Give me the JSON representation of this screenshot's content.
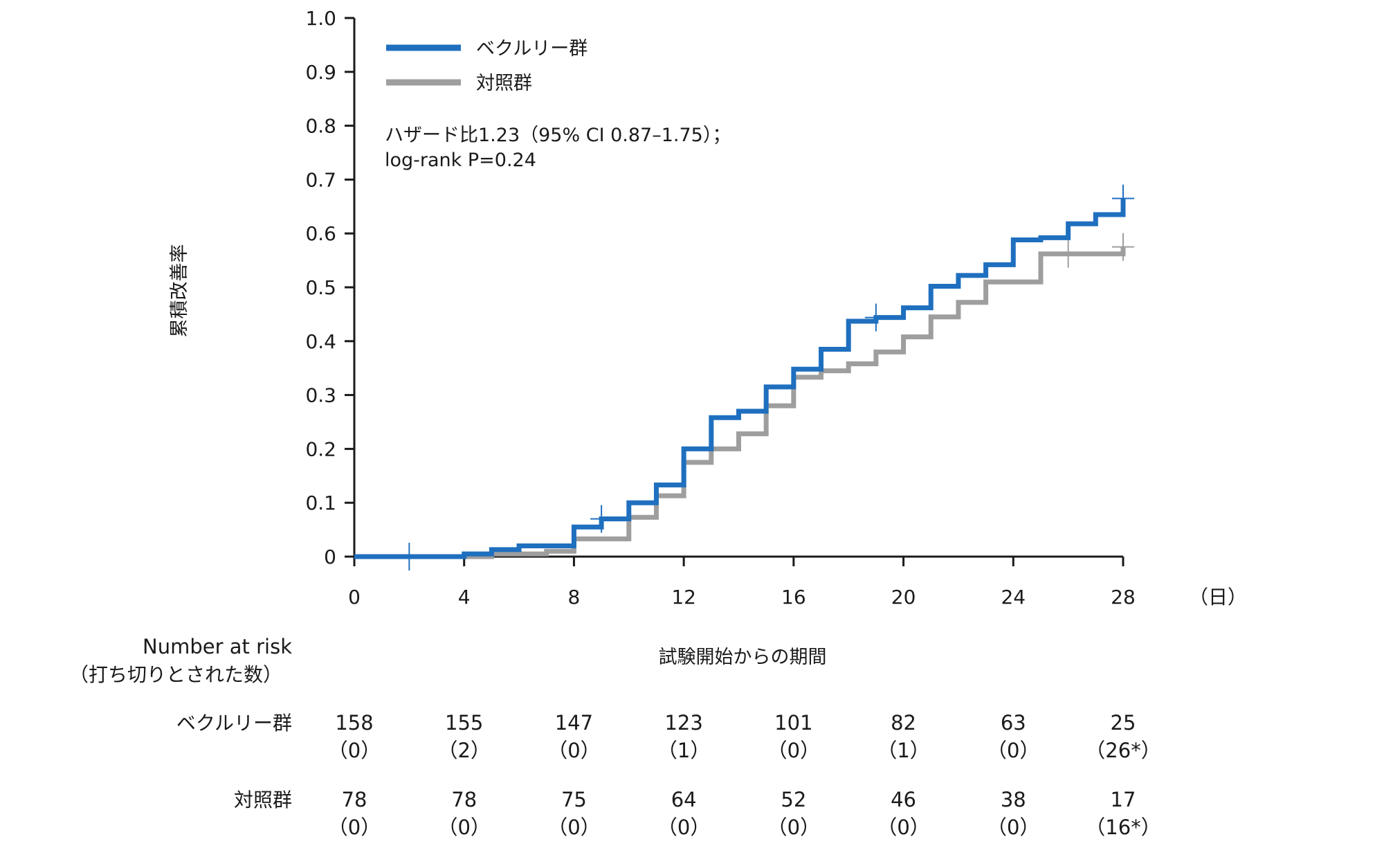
{
  "chart_data": {
    "type": "line",
    "step": true,
    "xlabel": "試験開始からの期間",
    "x_unit": "（日）",
    "ylabel": "累積改善率",
    "xlim": [
      0,
      28
    ],
    "ylim": [
      0,
      1.0
    ],
    "x_ticks": [
      0,
      4,
      8,
      12,
      16,
      20,
      24,
      28
    ],
    "y_ticks": [
      0,
      0.1,
      0.2,
      0.3,
      0.4,
      0.5,
      0.6,
      0.7,
      0.8,
      0.9,
      1.0
    ],
    "y_tick_labels": [
      "0",
      "0.1",
      "0.2",
      "0.3",
      "0.4",
      "0.5",
      "0.6",
      "0.7",
      "0.8",
      "0.9",
      "1.0"
    ],
    "grid": false,
    "legend_position": "top-left",
    "annotation": [
      "ハザード比1.23（95% CI 0.87–1.75）；",
      "log-rank P=0.24"
    ],
    "series": [
      {
        "name": "ベクルリー群",
        "color": "#1f6fbf",
        "points": [
          [
            0,
            0
          ],
          [
            4,
            0.005
          ],
          [
            5,
            0.013
          ],
          [
            6,
            0.02
          ],
          [
            8,
            0.055
          ],
          [
            9,
            0.07
          ],
          [
            10,
            0.1
          ],
          [
            11,
            0.133
          ],
          [
            12,
            0.2
          ],
          [
            13,
            0.258
          ],
          [
            14,
            0.27
          ],
          [
            15,
            0.315
          ],
          [
            16,
            0.348
          ],
          [
            17,
            0.385
          ],
          [
            18,
            0.437
          ],
          [
            19,
            0.444
          ],
          [
            20,
            0.462
          ],
          [
            21,
            0.502
          ],
          [
            22,
            0.522
          ],
          [
            23,
            0.542
          ],
          [
            24,
            0.588
          ],
          [
            25,
            0.592
          ],
          [
            26,
            0.618
          ],
          [
            27,
            0.635
          ],
          [
            28,
            0.665
          ]
        ],
        "censor_x": [
          2,
          9,
          19,
          28
        ]
      },
      {
        "name": "対照群",
        "color": "#9e9e9e",
        "points": [
          [
            0,
            0
          ],
          [
            5,
            0.005
          ],
          [
            7,
            0.01
          ],
          [
            8,
            0.033
          ],
          [
            10,
            0.073
          ],
          [
            11,
            0.113
          ],
          [
            12,
            0.175
          ],
          [
            13,
            0.2
          ],
          [
            14,
            0.228
          ],
          [
            15,
            0.28
          ],
          [
            16,
            0.333
          ],
          [
            17,
            0.345
          ],
          [
            18,
            0.358
          ],
          [
            19,
            0.38
          ],
          [
            20,
            0.408
          ],
          [
            21,
            0.445
          ],
          [
            22,
            0.472
          ],
          [
            23,
            0.51
          ],
          [
            25,
            0.562
          ],
          [
            28,
            0.575
          ]
        ],
        "censor_x": [
          26,
          28
        ]
      }
    ],
    "risk_table": {
      "title": "Number at risk",
      "subtitle": "（打ち切りとされた数）",
      "rows": [
        {
          "label": "ベクルリー群",
          "counts": [
            "158",
            "155",
            "147",
            "123",
            "101",
            "82",
            "63",
            "25"
          ],
          "censored": [
            "（0）",
            "（2）",
            "（0）",
            "（1）",
            "（0）",
            "（1）",
            "（0）",
            "（26*）"
          ]
        },
        {
          "label": "対照群",
          "counts": [
            "78",
            "78",
            "75",
            "64",
            "52",
            "46",
            "38",
            "17"
          ],
          "censored": [
            "（0）",
            "（0）",
            "（0）",
            "（0）",
            "（0）",
            "（0）",
            "（0）",
            "（16*）"
          ]
        }
      ]
    }
  }
}
